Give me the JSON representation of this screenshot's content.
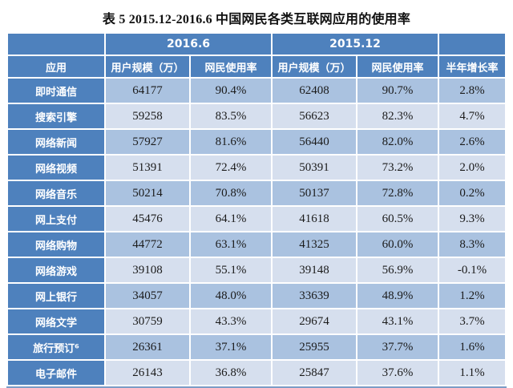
{
  "title": "表 5 2015.12-2016.6 中国网民各类互联网应用的使用率",
  "colors": {
    "header_blue": "#4E81BD",
    "row_dark": "#AAC2E0",
    "row_light": "#D6DFEE",
    "header_text": "#FFFFFF",
    "cell_text": "#1B1B1B",
    "outer_border": "#7C9CC6"
  },
  "table": {
    "group_headers": [
      {
        "label": "",
        "colspan": 1
      },
      {
        "label": "2016.6",
        "colspan": 2
      },
      {
        "label": "2015.12",
        "colspan": 2
      },
      {
        "label": "",
        "colspan": 1
      }
    ],
    "col_headers": [
      "应用",
      "用户规模（万）",
      "网民使用率",
      "用户规模（万）",
      "网民使用率",
      "半年增长率"
    ],
    "rows": [
      {
        "app": "即时通信",
        "values": [
          "64177",
          "90.4%",
          "62408",
          "90.7%",
          "2.8%"
        ]
      },
      {
        "app": "搜索引擎",
        "values": [
          "59258",
          "83.5%",
          "56623",
          "82.3%",
          "4.7%"
        ]
      },
      {
        "app": "网络新闻",
        "values": [
          "57927",
          "81.6%",
          "56440",
          "82.0%",
          "2.6%"
        ]
      },
      {
        "app": "网络视频",
        "values": [
          "51391",
          "72.4%",
          "50391",
          "73.2%",
          "2.0%"
        ]
      },
      {
        "app": "网络音乐",
        "values": [
          "50214",
          "70.8%",
          "50137",
          "72.8%",
          "0.2%"
        ]
      },
      {
        "app": "网上支付",
        "values": [
          "45476",
          "64.1%",
          "41618",
          "60.5%",
          "9.3%"
        ]
      },
      {
        "app": "网络购物",
        "values": [
          "44772",
          "63.1%",
          "41325",
          "60.0%",
          "8.3%"
        ]
      },
      {
        "app": "网络游戏",
        "values": [
          "39108",
          "55.1%",
          "39148",
          "56.9%",
          "-0.1%"
        ]
      },
      {
        "app": "网上银行",
        "values": [
          "34057",
          "48.0%",
          "33639",
          "48.9%",
          "1.2%"
        ]
      },
      {
        "app": "网络文学",
        "values": [
          "30759",
          "43.3%",
          "29674",
          "43.1%",
          "3.7%"
        ]
      },
      {
        "app": "旅行预订⁶",
        "values": [
          "26361",
          "37.1%",
          "25955",
          "37.7%",
          "1.6%"
        ]
      },
      {
        "app": "电子邮件",
        "values": [
          "26143",
          "36.8%",
          "25847",
          "37.6%",
          "1.1%"
        ]
      }
    ]
  }
}
